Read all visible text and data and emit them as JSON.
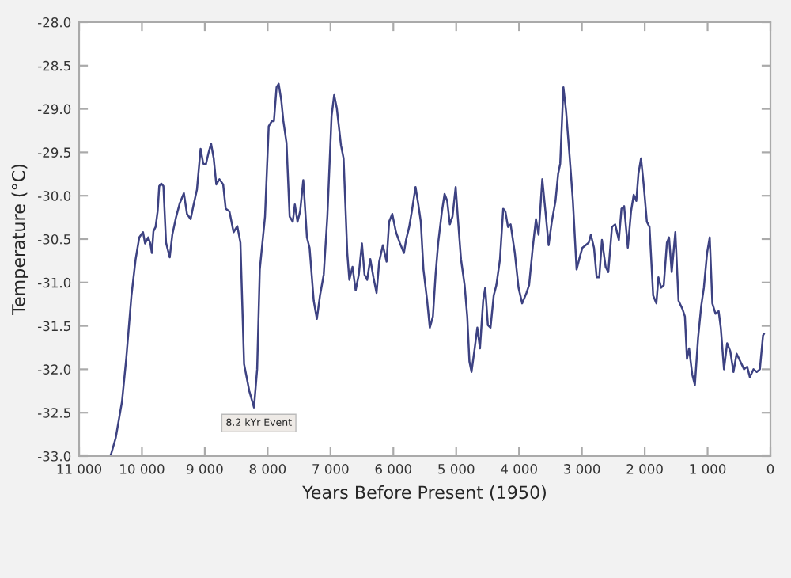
{
  "chart_data": {
    "type": "line",
    "xlabel": "Years Before Present (1950)",
    "ylabel": "Temperature (°C)",
    "x": [
      10500,
      10417,
      10317,
      10250,
      10167,
      10100,
      10042,
      9983,
      9950,
      9900,
      9867,
      9842,
      9817,
      9783,
      9750,
      9725,
      9692,
      9658,
      9617,
      9558,
      9517,
      9458,
      9400,
      9333,
      9283,
      9225,
      9183,
      9125,
      9067,
      9025,
      8983,
      8942,
      8900,
      8858,
      8817,
      8767,
      8708,
      8667,
      8608,
      8542,
      8483,
      8433,
      8375,
      8292,
      8217,
      8167,
      8125,
      8083,
      8042,
      7983,
      7933,
      7900,
      7858,
      7825,
      7783,
      7750,
      7700,
      7650,
      7600,
      7567,
      7525,
      7483,
      7433,
      7375,
      7333,
      7267,
      7217,
      7167,
      7108,
      7050,
      6983,
      6942,
      6900,
      6833,
      6792,
      6733,
      6700,
      6650,
      6600,
      6550,
      6500,
      6458,
      6417,
      6367,
      6317,
      6267,
      6225,
      6167,
      6108,
      6067,
      6017,
      5958,
      5899,
      5832,
      5798,
      5748,
      5706,
      5647,
      5605,
      5563,
      5521,
      5462,
      5420,
      5370,
      5328,
      5286,
      5227,
      5185,
      5143,
      5101,
      5059,
      5008,
      4975,
      4924,
      4866,
      4824,
      4790,
      4756,
      4706,
      4664,
      4622,
      4571,
      4538,
      4496,
      4454,
      4403,
      4361,
      4303,
      4252,
      4218,
      4176,
      4134,
      4067,
      4008,
      3950,
      3882,
      3840,
      3782,
      3731,
      3689,
      3630,
      3580,
      3529,
      3479,
      3420,
      3378,
      3345,
      3294,
      3252,
      3193,
      3143,
      3084,
      3042,
      2992,
      2941,
      2891,
      2857,
      2807,
      2765,
      2723,
      2681,
      2622,
      2580,
      2521,
      2471,
      2412,
      2370,
      2328,
      2269,
      2218,
      2176,
      2134,
      2101,
      2059,
      2017,
      1966,
      1924,
      1866,
      1815,
      1782,
      1739,
      1697,
      1647,
      1613,
      1571,
      1513,
      1462,
      1403,
      1361,
      1328,
      1294,
      1244,
      1202,
      1151,
      1101,
      1059,
      1008,
      966,
      924,
      874,
      824,
      790,
      739,
      689,
      639,
      588,
      538,
      479,
      420,
      370,
      328,
      269,
      218,
      168,
      118,
      101
    ],
    "series": [
      {
        "color": "#3d4282",
        "values": [
          -33.0,
          -32.79,
          -32.37,
          -31.88,
          -31.15,
          -30.73,
          -30.48,
          -30.42,
          -30.55,
          -30.48,
          -30.55,
          -30.66,
          -30.41,
          -30.36,
          -30.18,
          -29.89,
          -29.86,
          -29.89,
          -30.54,
          -30.71,
          -30.45,
          -30.25,
          -30.09,
          -29.97,
          -30.21,
          -30.27,
          -30.12,
          -29.93,
          -29.46,
          -29.63,
          -29.64,
          -29.51,
          -29.4,
          -29.57,
          -29.87,
          -29.81,
          -29.87,
          -30.15,
          -30.18,
          -30.42,
          -30.35,
          -30.54,
          -31.94,
          -32.25,
          -32.44,
          -32.0,
          -30.85,
          -30.54,
          -30.24,
          -29.2,
          -29.14,
          -29.14,
          -28.75,
          -28.71,
          -28.9,
          -29.14,
          -29.39,
          -30.24,
          -30.3,
          -30.1,
          -30.3,
          -30.18,
          -29.82,
          -30.48,
          -30.6,
          -31.21,
          -31.42,
          -31.15,
          -30.91,
          -30.24,
          -29.08,
          -28.84,
          -28.99,
          -29.42,
          -29.57,
          -30.66,
          -30.97,
          -30.82,
          -31.09,
          -30.91,
          -30.55,
          -30.91,
          -30.97,
          -30.73,
          -30.94,
          -31.12,
          -30.76,
          -30.57,
          -30.76,
          -30.3,
          -30.21,
          -30.42,
          -30.54,
          -30.66,
          -30.51,
          -30.36,
          -30.18,
          -29.9,
          -30.09,
          -30.3,
          -30.85,
          -31.21,
          -31.52,
          -31.39,
          -30.91,
          -30.54,
          -30.18,
          -29.98,
          -30.06,
          -30.33,
          -30.24,
          -29.9,
          -30.24,
          -30.73,
          -31.03,
          -31.39,
          -31.91,
          -32.03,
          -31.76,
          -31.52,
          -31.76,
          -31.21,
          -31.06,
          -31.49,
          -31.52,
          -31.15,
          -31.03,
          -30.73,
          -30.15,
          -30.18,
          -30.36,
          -30.33,
          -30.66,
          -31.06,
          -31.24,
          -31.12,
          -31.03,
          -30.6,
          -30.27,
          -30.45,
          -29.81,
          -30.18,
          -30.57,
          -30.3,
          -30.06,
          -29.75,
          -29.63,
          -28.75,
          -29.02,
          -29.57,
          -30.06,
          -30.85,
          -30.73,
          -30.6,
          -30.57,
          -30.54,
          -30.45,
          -30.6,
          -30.94,
          -30.94,
          -30.51,
          -30.82,
          -30.88,
          -30.36,
          -30.33,
          -30.51,
          -30.15,
          -30.12,
          -30.6,
          -30.18,
          -29.99,
          -30.06,
          -29.75,
          -29.57,
          -29.87,
          -30.3,
          -30.36,
          -31.15,
          -31.24,
          -30.94,
          -31.06,
          -31.03,
          -30.54,
          -30.48,
          -30.88,
          -30.42,
          -31.21,
          -31.3,
          -31.39,
          -31.88,
          -31.76,
          -32.06,
          -32.18,
          -31.64,
          -31.27,
          -31.06,
          -30.66,
          -30.48,
          -31.24,
          -31.36,
          -31.33,
          -31.52,
          -32.0,
          -31.7,
          -31.79,
          -32.03,
          -31.82,
          -31.91,
          -32.0,
          -31.97,
          -32.09,
          -32.0,
          -32.03,
          -32.0,
          -31.61,
          -31.59
        ]
      }
    ],
    "xlim": [
      11000,
      0
    ],
    "xticks": [
      {
        "value": 11000,
        "label": "11 000"
      },
      {
        "value": 10000,
        "label": "10 000"
      },
      {
        "value": 9000,
        "label": "9 000"
      },
      {
        "value": 8000,
        "label": "8 000"
      },
      {
        "value": 7000,
        "label": "7 000"
      },
      {
        "value": 6000,
        "label": "6 000"
      },
      {
        "value": 5000,
        "label": "5 000"
      },
      {
        "value": 4000,
        "label": "4 000"
      },
      {
        "value": 3000,
        "label": "3 000"
      },
      {
        "value": 2000,
        "label": "2 000"
      },
      {
        "value": 1000,
        "label": "1 000"
      },
      0
    ],
    "ylim": [
      -33,
      -28
    ],
    "yticks": [
      {
        "value": -33,
        "label": "-33.0"
      },
      {
        "value": -32.5,
        "label": "-32.5"
      },
      {
        "value": -32,
        "label": "-32.0"
      },
      {
        "value": -31.5,
        "label": "-31.5"
      },
      {
        "value": -31,
        "label": "-31.0"
      },
      {
        "value": -30.5,
        "label": "-30.5"
      },
      {
        "value": -30,
        "label": "-30.0"
      },
      {
        "value": -29.5,
        "label": "-29.5"
      },
      {
        "value": -29,
        "label": "-29.0"
      },
      {
        "value": -28.5,
        "label": "-28.5"
      },
      {
        "value": -28,
        "label": "-28.0"
      }
    ],
    "annotations": [
      "8.2 kYr Event"
    ],
    "grid": false,
    "legend": false,
    "marker": "none",
    "line_style": "solid"
  }
}
